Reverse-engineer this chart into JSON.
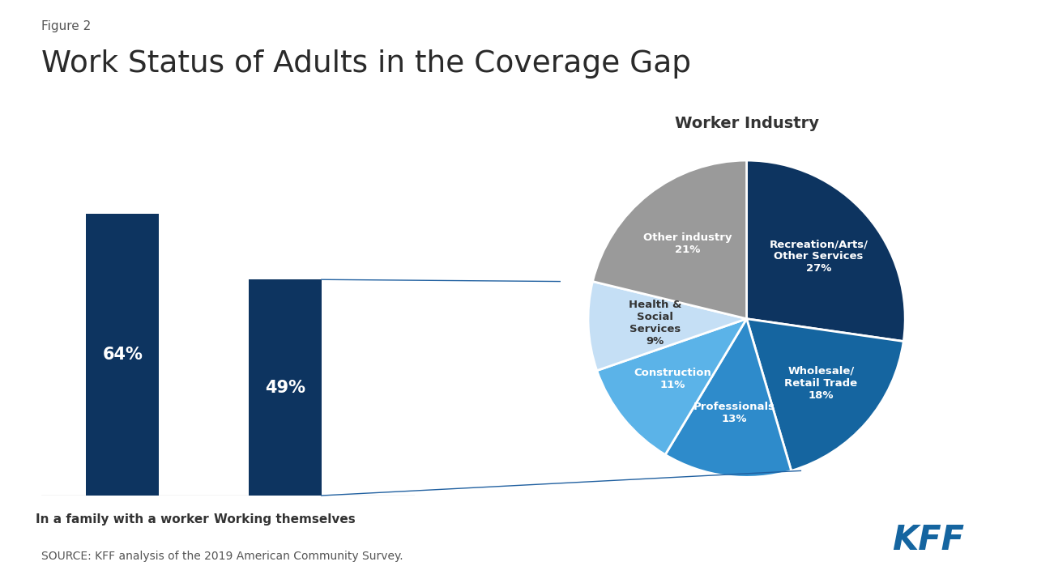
{
  "figure_label": "Figure 2",
  "title": "Work Status of Adults in the Coverage Gap",
  "bar_categories": [
    "In a family with a worker",
    "Working themselves"
  ],
  "bar_values": [
    64,
    49
  ],
  "bar_color": "#0d3460",
  "bar_text_color": "#ffffff",
  "pie_title": "Worker Industry",
  "pie_values": [
    27,
    18,
    13,
    11,
    9,
    21
  ],
  "pie_labels": [
    "Recreation/Arts/\nOther Services\n27%",
    "Wholesale/\nRetail Trade\n18%",
    "Professionals\n13%",
    "Construction\n11%",
    "Health &\nSocial\nServices\n9%",
    "Other industry\n21%"
  ],
  "pie_colors": [
    "#0d3460",
    "#1565a0",
    "#2e8bcb",
    "#5bb3e8",
    "#c5dff5",
    "#9a9a9a"
  ],
  "pie_text_colors": [
    "#ffffff",
    "#ffffff",
    "#ffffff",
    "#ffffff",
    "#333333",
    "#ffffff"
  ],
  "source_text": "SOURCE: KFF analysis of the 2019 American Community Survey.",
  "background_color": "#ffffff",
  "title_color": "#333333",
  "kff_color": "#1565a0",
  "line_color": "#2060a0"
}
